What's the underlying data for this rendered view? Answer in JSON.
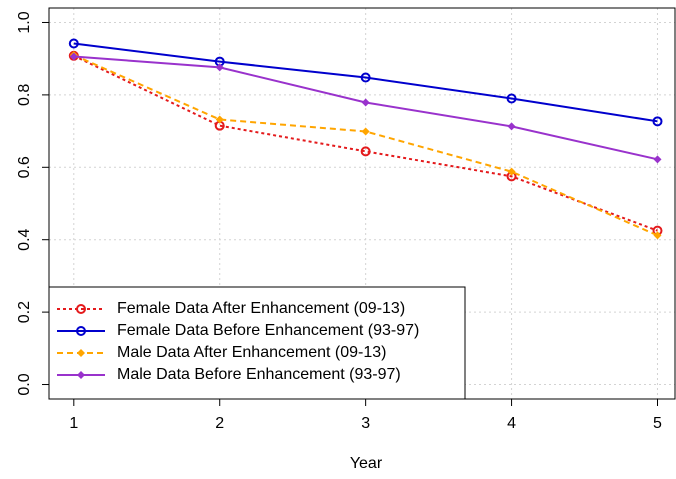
{
  "chart_data": {
    "type": "line",
    "x_label": "Year",
    "x": [
      1,
      2,
      3,
      4,
      5
    ],
    "series": [
      {
        "name": "Female Data After Enhancement (09-13)",
        "color": "#e41a1c",
        "marker": "circle",
        "dash": "dotted",
        "values": [
          0.908,
          0.715,
          0.644,
          0.575,
          0.425
        ]
      },
      {
        "name": "Female Data Before Enhancement (93-97)",
        "color": "#0000cd",
        "marker": "circle",
        "dash": "solid",
        "values": [
          0.942,
          0.892,
          0.848,
          0.79,
          0.727
        ]
      },
      {
        "name": "Male Data After Enhancement (09-13)",
        "color": "#ffa500",
        "marker": "diamond",
        "dash": "dashed",
        "values": [
          0.91,
          0.732,
          0.699,
          0.588,
          0.412
        ]
      },
      {
        "name": "Male Data Before Enhancement (93-97)",
        "color": "#9932cc",
        "marker": "diamond",
        "dash": "solid",
        "values": [
          0.906,
          0.876,
          0.779,
          0.713,
          0.622
        ]
      }
    ],
    "xlim": [
      0.83,
      5.12
    ],
    "xticks": [
      1,
      2,
      3,
      4,
      5
    ],
    "ylim": [
      -0.04,
      1.04
    ],
    "yticks": [
      {
        "value": 0,
        "label": "0.0"
      },
      0.2,
      0.4,
      0.6,
      0.8,
      {
        "value": 1,
        "label": "1.0"
      }
    ],
    "grid": true,
    "legend": "bottom-left"
  }
}
